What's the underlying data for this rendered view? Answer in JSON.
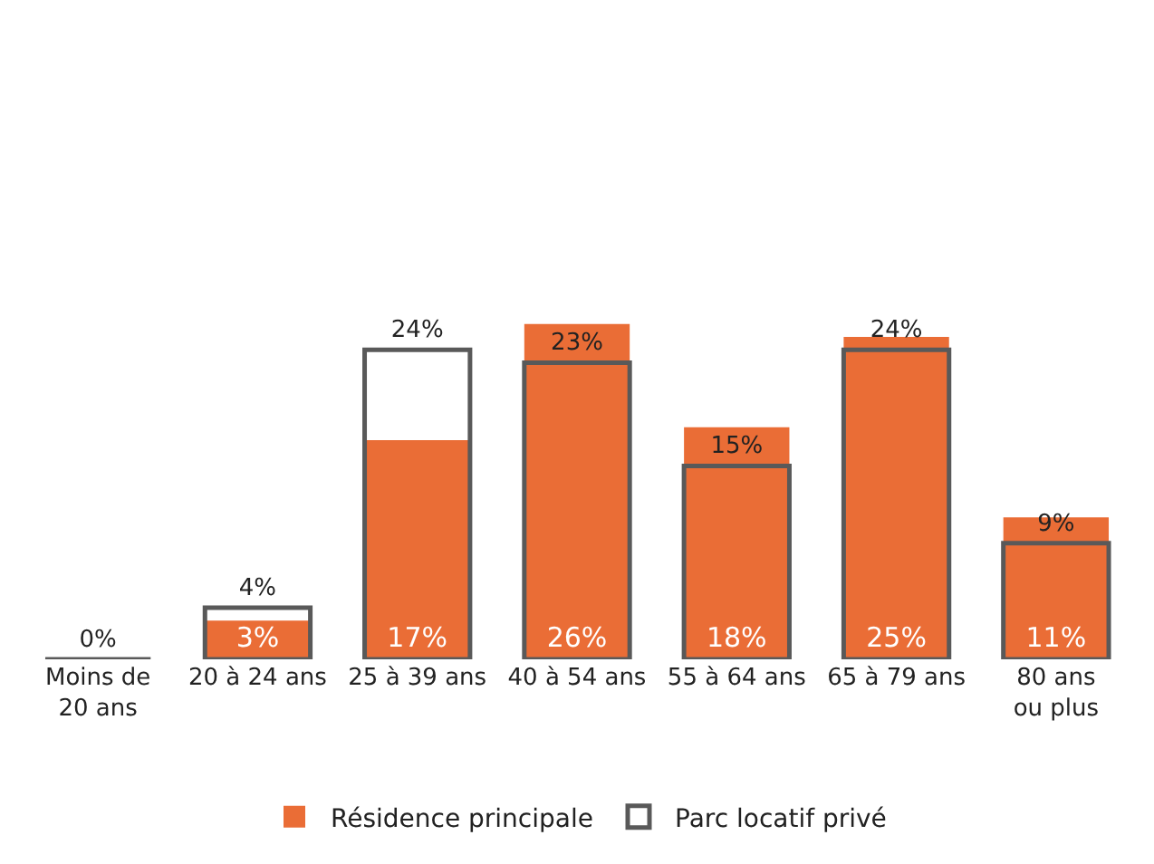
{
  "chart_data": {
    "type": "bar",
    "categories": [
      "Moins de\n20 ans",
      "20 à 24 ans",
      "25 à 39 ans",
      "40 à 54 ans",
      "55 à 64 ans",
      "65 à 79 ans",
      "80 ans\nou plus"
    ],
    "series": [
      {
        "name": "Résidence principale",
        "color": "#ea6d36",
        "values": [
          0,
          3,
          17,
          26,
          18,
          25,
          11
        ],
        "value_labels": [
          null,
          "3%",
          "17%",
          "26%",
          "18%",
          "25%",
          "11%"
        ]
      },
      {
        "name": "Parc locatif privé",
        "color": "#595959",
        "values": [
          0,
          4,
          24,
          23,
          15,
          24,
          9
        ],
        "value_labels": [
          "0%",
          "4%",
          "24%",
          "23%",
          "15%",
          "24%",
          "9%"
        ]
      }
    ],
    "legend": "bottom"
  }
}
